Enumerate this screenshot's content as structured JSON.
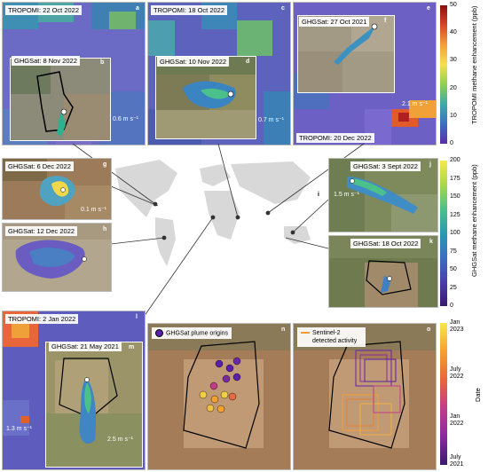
{
  "panels": {
    "a": {
      "tropomi": "TROPOMI: 22 Oct 2022",
      "ghgsat": "GHGSat: 8 Nov 2022",
      "speed": "0.6 m s⁻¹",
      "letter_a": "a",
      "letter_b": "b"
    },
    "c": {
      "tropomi": "TROPOMI: 18 Oct 2022",
      "ghgsat": "GHGSat: 10 Nov 2022",
      "speed": "0.7 m s⁻¹",
      "letter_c": "c",
      "letter_d": "d"
    },
    "e": {
      "ghgsat": "GHGSat: 27 Oct 2021",
      "tropomi": "TROPOMI: 20 Dec 2022",
      "speed": "2.1 m s⁻¹",
      "letter_e": "e",
      "letter_f": "f"
    },
    "g": {
      "ghgsat": "GHGSat: 6 Dec 2022",
      "speed": "0.1 m s⁻¹",
      "letter": "g"
    },
    "h": {
      "ghgsat": "GHGSat: 12 Dec 2022",
      "letter": "h"
    },
    "i": {
      "letter": "i"
    },
    "j": {
      "ghgsat": "GHGSat: 3 Sept 2022",
      "speed": "1.5 m s⁻¹",
      "letter": "j"
    },
    "k": {
      "ghgsat": "GHGSat: 18 Oct 2022",
      "letter": "k"
    },
    "l": {
      "tropomi": "TROPOMI: 2 Jan 2022",
      "ghgsat": "GHGSat: 21 May 2021",
      "speed": "1.3 m s⁻¹",
      "speed2": "2.5 m s⁻¹",
      "letter_l": "l",
      "letter_m": "m"
    },
    "n": {
      "legend": "GHGSat plume origins",
      "letter": "n"
    },
    "o": {
      "legend": "Sentinel-2 detected activity",
      "letter": "o"
    }
  },
  "colorbars": {
    "tropomi": {
      "title": "TROPOMI methane enhancement (ppb)",
      "ticks": [
        "50",
        "40",
        "30",
        "20",
        "10",
        "0"
      ]
    },
    "ghgsat": {
      "title": "GHGSat methane enhancement (ppb)",
      "ticks": [
        "200",
        "175",
        "150",
        "125",
        "100",
        "75",
        "50",
        "25",
        "0"
      ]
    },
    "date": {
      "title": "Date",
      "ticks": [
        "Jan 2023",
        "July 2022",
        "Jan 2022",
        "July 2021"
      ]
    }
  },
  "colors": {
    "tropomi_bg": "#5a5ab8",
    "accent_purple": "#5a1ea8",
    "accent_orange": "#f39c3a"
  }
}
